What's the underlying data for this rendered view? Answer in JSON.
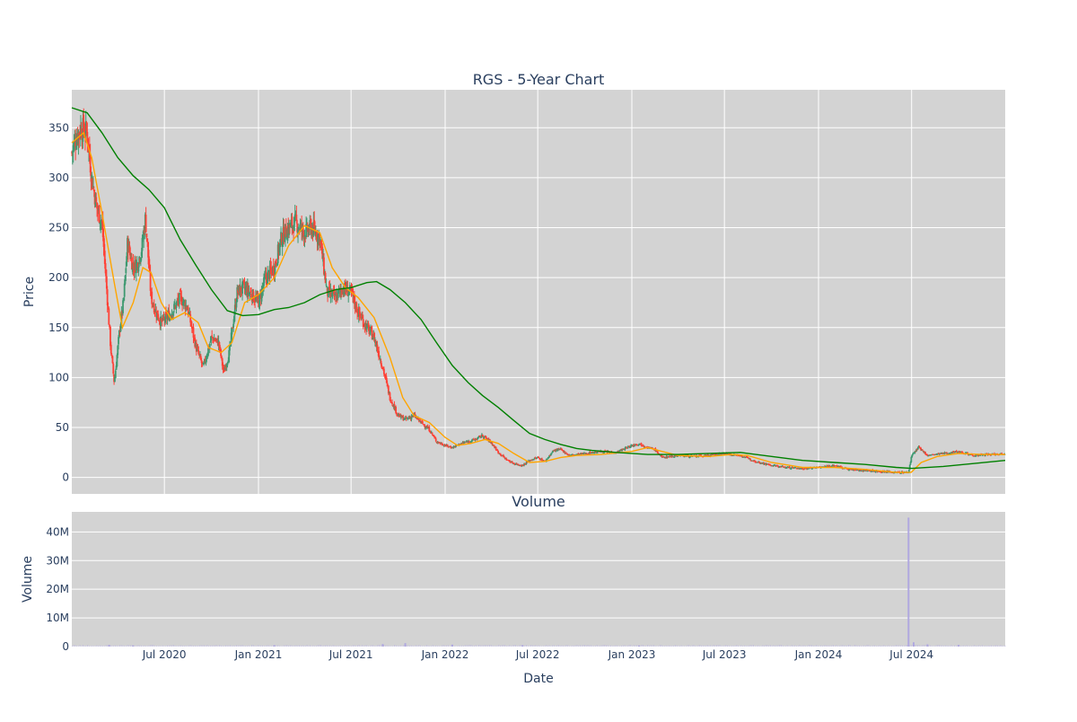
{
  "chart_data": [
    {
      "type": "candlestick",
      "title": "RGS - 5-Year Chart",
      "ylabel": "Price",
      "ylim": [
        -16.5,
        388
      ],
      "y_ticks": [
        0,
        50,
        100,
        150,
        200,
        250,
        300,
        350
      ],
      "x_range": [
        "2020-01-02",
        "2024-12-31"
      ],
      "grid": true,
      "increasing_color": "#3d9970",
      "decreasing_color": "#ff4136",
      "series": [
        {
          "kind": "ohlc_close_approx",
          "points": [
            [
              "2020-01-02",
              325
            ],
            [
              "2020-01-10",
              340
            ],
            [
              "2020-01-20",
              350
            ],
            [
              "2020-02-01",
              345
            ],
            [
              "2020-02-10",
              300
            ],
            [
              "2020-02-20",
              270
            ],
            [
              "2020-03-01",
              255
            ],
            [
              "2020-03-10",
              190
            ],
            [
              "2020-03-18",
              130
            ],
            [
              "2020-03-25",
              95
            ],
            [
              "2020-04-05",
              150
            ],
            [
              "2020-04-12",
              175
            ],
            [
              "2020-04-20",
              235
            ],
            [
              "2020-05-01",
              210
            ],
            [
              "2020-05-10",
              215
            ],
            [
              "2020-05-18",
              230
            ],
            [
              "2020-05-25",
              260
            ],
            [
              "2020-06-05",
              180
            ],
            [
              "2020-06-15",
              165
            ],
            [
              "2020-06-25",
              155
            ],
            [
              "2020-07-05",
              160
            ],
            [
              "2020-07-15",
              165
            ],
            [
              "2020-08-01",
              180
            ],
            [
              "2020-08-15",
              170
            ],
            [
              "2020-09-01",
              130
            ],
            [
              "2020-09-15",
              110
            ],
            [
              "2020-10-01",
              140
            ],
            [
              "2020-10-15",
              135
            ],
            [
              "2020-10-25",
              105
            ],
            [
              "2020-11-05",
              125
            ],
            [
              "2020-11-20",
              185
            ],
            [
              "2020-12-01",
              190
            ],
            [
              "2020-12-15",
              185
            ],
            [
              "2021-01-01",
              175
            ],
            [
              "2021-01-15",
              200
            ],
            [
              "2021-02-01",
              210
            ],
            [
              "2021-02-15",
              240
            ],
            [
              "2021-03-01",
              250
            ],
            [
              "2021-03-15",
              255
            ],
            [
              "2021-04-01",
              245
            ],
            [
              "2021-04-15",
              250
            ],
            [
              "2021-05-01",
              240
            ],
            [
              "2021-05-15",
              185
            ],
            [
              "2021-06-01",
              180
            ],
            [
              "2021-06-15",
              190
            ],
            [
              "2021-07-01",
              185
            ],
            [
              "2021-07-15",
              165
            ],
            [
              "2021-08-01",
              150
            ],
            [
              "2021-08-15",
              140
            ],
            [
              "2021-09-01",
              110
            ],
            [
              "2021-09-15",
              80
            ],
            [
              "2021-10-01",
              62
            ],
            [
              "2021-10-15",
              58
            ],
            [
              "2021-11-01",
              62
            ],
            [
              "2021-11-15",
              55
            ],
            [
              "2021-12-01",
              48
            ],
            [
              "2021-12-15",
              36
            ],
            [
              "2022-01-01",
              32
            ],
            [
              "2022-01-15",
              30
            ],
            [
              "2022-02-01",
              34
            ],
            [
              "2022-02-15",
              36
            ],
            [
              "2022-03-01",
              38
            ],
            [
              "2022-03-15",
              42
            ],
            [
              "2022-04-01",
              35
            ],
            [
              "2022-04-15",
              25
            ],
            [
              "2022-05-01",
              18
            ],
            [
              "2022-05-15",
              14
            ],
            [
              "2022-06-01",
              12
            ],
            [
              "2022-06-15",
              17
            ],
            [
              "2022-07-01",
              20
            ],
            [
              "2022-07-15",
              16
            ],
            [
              "2022-08-01",
              27
            ],
            [
              "2022-08-15",
              28
            ],
            [
              "2022-09-01",
              22
            ],
            [
              "2022-10-01",
              24
            ],
            [
              "2022-11-01",
              26
            ],
            [
              "2022-12-01",
              25
            ],
            [
              "2023-01-01",
              32
            ],
            [
              "2023-01-15",
              34
            ],
            [
              "2023-02-01",
              30
            ],
            [
              "2023-02-15",
              28
            ],
            [
              "2023-03-01",
              20
            ],
            [
              "2023-04-01",
              22
            ],
            [
              "2023-05-01",
              21
            ],
            [
              "2023-06-01",
              22
            ],
            [
              "2023-07-01",
              24
            ],
            [
              "2023-08-01",
              22
            ],
            [
              "2023-09-01",
              16
            ],
            [
              "2023-10-01",
              12
            ],
            [
              "2023-11-01",
              10
            ],
            [
              "2023-12-01",
              9
            ],
            [
              "2024-01-01",
              10
            ],
            [
              "2024-02-01",
              12
            ],
            [
              "2024-03-01",
              8
            ],
            [
              "2024-04-01",
              7
            ],
            [
              "2024-05-01",
              6
            ],
            [
              "2024-06-01",
              5
            ],
            [
              "2024-06-25",
              5
            ],
            [
              "2024-07-01",
              22
            ],
            [
              "2024-07-15",
              30
            ],
            [
              "2024-08-01",
              22
            ],
            [
              "2024-09-01",
              24
            ],
            [
              "2024-10-01",
              26
            ],
            [
              "2024-11-01",
              22
            ],
            [
              "2024-12-01",
              23
            ],
            [
              "2024-12-31",
              24
            ]
          ]
        },
        {
          "kind": "moving_average_short",
          "color": "orange",
          "points": [
            [
              "2020-01-02",
              335
            ],
            [
              "2020-01-25",
              345
            ],
            [
              "2020-02-10",
              320
            ],
            [
              "2020-03-01",
              265
            ],
            [
              "2020-03-25",
              195
            ],
            [
              "2020-04-10",
              150
            ],
            [
              "2020-05-01",
              175
            ],
            [
              "2020-05-20",
              210
            ],
            [
              "2020-06-05",
              205
            ],
            [
              "2020-06-25",
              175
            ],
            [
              "2020-07-15",
              158
            ],
            [
              "2020-08-10",
              165
            ],
            [
              "2020-09-05",
              155
            ],
            [
              "2020-09-25",
              130
            ],
            [
              "2020-10-20",
              125
            ],
            [
              "2020-11-10",
              135
            ],
            [
              "2020-12-05",
              175
            ],
            [
              "2021-01-01",
              183
            ],
            [
              "2021-02-01",
              200
            ],
            [
              "2021-03-01",
              232
            ],
            [
              "2021-04-01",
              252
            ],
            [
              "2021-05-01",
              245
            ],
            [
              "2021-05-25",
              210
            ],
            [
              "2021-06-20",
              190
            ],
            [
              "2021-07-15",
              180
            ],
            [
              "2021-08-15",
              160
            ],
            [
              "2021-09-15",
              120
            ],
            [
              "2021-10-10",
              80
            ],
            [
              "2021-11-01",
              62
            ],
            [
              "2021-12-01",
              55
            ],
            [
              "2022-01-01",
              40
            ],
            [
              "2022-01-25",
              32
            ],
            [
              "2022-02-20",
              34
            ],
            [
              "2022-03-20",
              38
            ],
            [
              "2022-04-15",
              34
            ],
            [
              "2022-05-15",
              24
            ],
            [
              "2022-06-15",
              15
            ],
            [
              "2022-07-15",
              16
            ],
            [
              "2022-08-15",
              20
            ],
            [
              "2022-09-15",
              22
            ],
            [
              "2022-11-01",
              23
            ],
            [
              "2023-01-01",
              26
            ],
            [
              "2023-02-01",
              30
            ],
            [
              "2023-03-01",
              26
            ],
            [
              "2023-04-01",
              22
            ],
            [
              "2023-06-01",
              21
            ],
            [
              "2023-07-15",
              23
            ],
            [
              "2023-08-15",
              22
            ],
            [
              "2023-10-01",
              15
            ],
            [
              "2023-12-01",
              10
            ],
            [
              "2024-02-01",
              10
            ],
            [
              "2024-04-01",
              8
            ],
            [
              "2024-06-01",
              5
            ],
            [
              "2024-06-30",
              5
            ],
            [
              "2024-07-20",
              15
            ],
            [
              "2024-08-20",
              21
            ],
            [
              "2024-10-01",
              24
            ],
            [
              "2024-11-15",
              23
            ],
            [
              "2024-12-31",
              23
            ]
          ]
        },
        {
          "kind": "moving_average_long",
          "color": "green",
          "points": [
            [
              "2020-01-02",
              370
            ],
            [
              "2020-02-01",
              365
            ],
            [
              "2020-03-01",
              345
            ],
            [
              "2020-04-01",
              320
            ],
            [
              "2020-05-01",
              302
            ],
            [
              "2020-06-01",
              288
            ],
            [
              "2020-07-01",
              270
            ],
            [
              "2020-08-01",
              238
            ],
            [
              "2020-09-01",
              212
            ],
            [
              "2020-10-01",
              188
            ],
            [
              "2020-11-01",
              167
            ],
            [
              "2020-12-01",
              162
            ],
            [
              "2021-01-01",
              163
            ],
            [
              "2021-02-01",
              168
            ],
            [
              "2021-03-01",
              170
            ],
            [
              "2021-04-01",
              175
            ],
            [
              "2021-05-01",
              183
            ],
            [
              "2021-06-01",
              188
            ],
            [
              "2021-07-01",
              190
            ],
            [
              "2021-08-01",
              195
            ],
            [
              "2021-08-20",
              196
            ],
            [
              "2021-09-15",
              188
            ],
            [
              "2021-10-15",
              175
            ],
            [
              "2021-11-15",
              158
            ],
            [
              "2021-12-15",
              135
            ],
            [
              "2022-01-15",
              112
            ],
            [
              "2022-02-15",
              95
            ],
            [
              "2022-03-15",
              82
            ],
            [
              "2022-04-15",
              70
            ],
            [
              "2022-05-15",
              57
            ],
            [
              "2022-06-15",
              44
            ],
            [
              "2022-07-15",
              38
            ],
            [
              "2022-08-15",
              33
            ],
            [
              "2022-09-15",
              29
            ],
            [
              "2022-10-15",
              27
            ],
            [
              "2022-12-01",
              25
            ],
            [
              "2023-02-01",
              23
            ],
            [
              "2023-04-01",
              23
            ],
            [
              "2023-06-01",
              24
            ],
            [
              "2023-08-01",
              25
            ],
            [
              "2023-10-01",
              21
            ],
            [
              "2023-12-01",
              17
            ],
            [
              "2024-02-01",
              15
            ],
            [
              "2024-04-01",
              13
            ],
            [
              "2024-06-01",
              10
            ],
            [
              "2024-07-01",
              9
            ],
            [
              "2024-09-01",
              11
            ],
            [
              "2024-11-01",
              14
            ],
            [
              "2024-12-31",
              17
            ]
          ]
        }
      ]
    },
    {
      "type": "bar",
      "title": "Volume",
      "ylabel": "Volume",
      "xlabel": "Date",
      "ylim": [
        0,
        47000000
      ],
      "y_ticks": [
        0,
        10000000,
        20000000,
        30000000,
        40000000
      ],
      "y_tick_labels": [
        "0",
        "10M",
        "20M",
        "30M",
        "40M"
      ],
      "x_ticks": [
        "2020-07-01",
        "2021-01-01",
        "2021-07-01",
        "2022-01-01",
        "2022-07-01",
        "2023-01-01",
        "2023-07-01",
        "2024-01-01",
        "2024-07-01"
      ],
      "x_tick_labels": [
        "Jul 2020",
        "Jan 2021",
        "Jul 2021",
        "Jan 2022",
        "Jul 2022",
        "Jan 2023",
        "Jul 2023",
        "Jan 2024",
        "Jul 2024"
      ],
      "grid": true,
      "bar_color": "#b0a8e0",
      "series": [
        {
          "points": [
            [
              "2020-03-15",
              600000
            ],
            [
              "2020-05-01",
              400000
            ],
            [
              "2021-02-01",
              500000
            ],
            [
              "2021-09-01",
              900000
            ],
            [
              "2021-10-15",
              1200000
            ],
            [
              "2022-01-15",
              700000
            ],
            [
              "2022-06-01",
              500000
            ],
            [
              "2023-01-15",
              400000
            ],
            [
              "2024-06-25",
              45000000
            ],
            [
              "2024-07-05",
              1500000
            ],
            [
              "2024-08-01",
              800000
            ],
            [
              "2024-10-01",
              600000
            ]
          ]
        }
      ]
    }
  ]
}
